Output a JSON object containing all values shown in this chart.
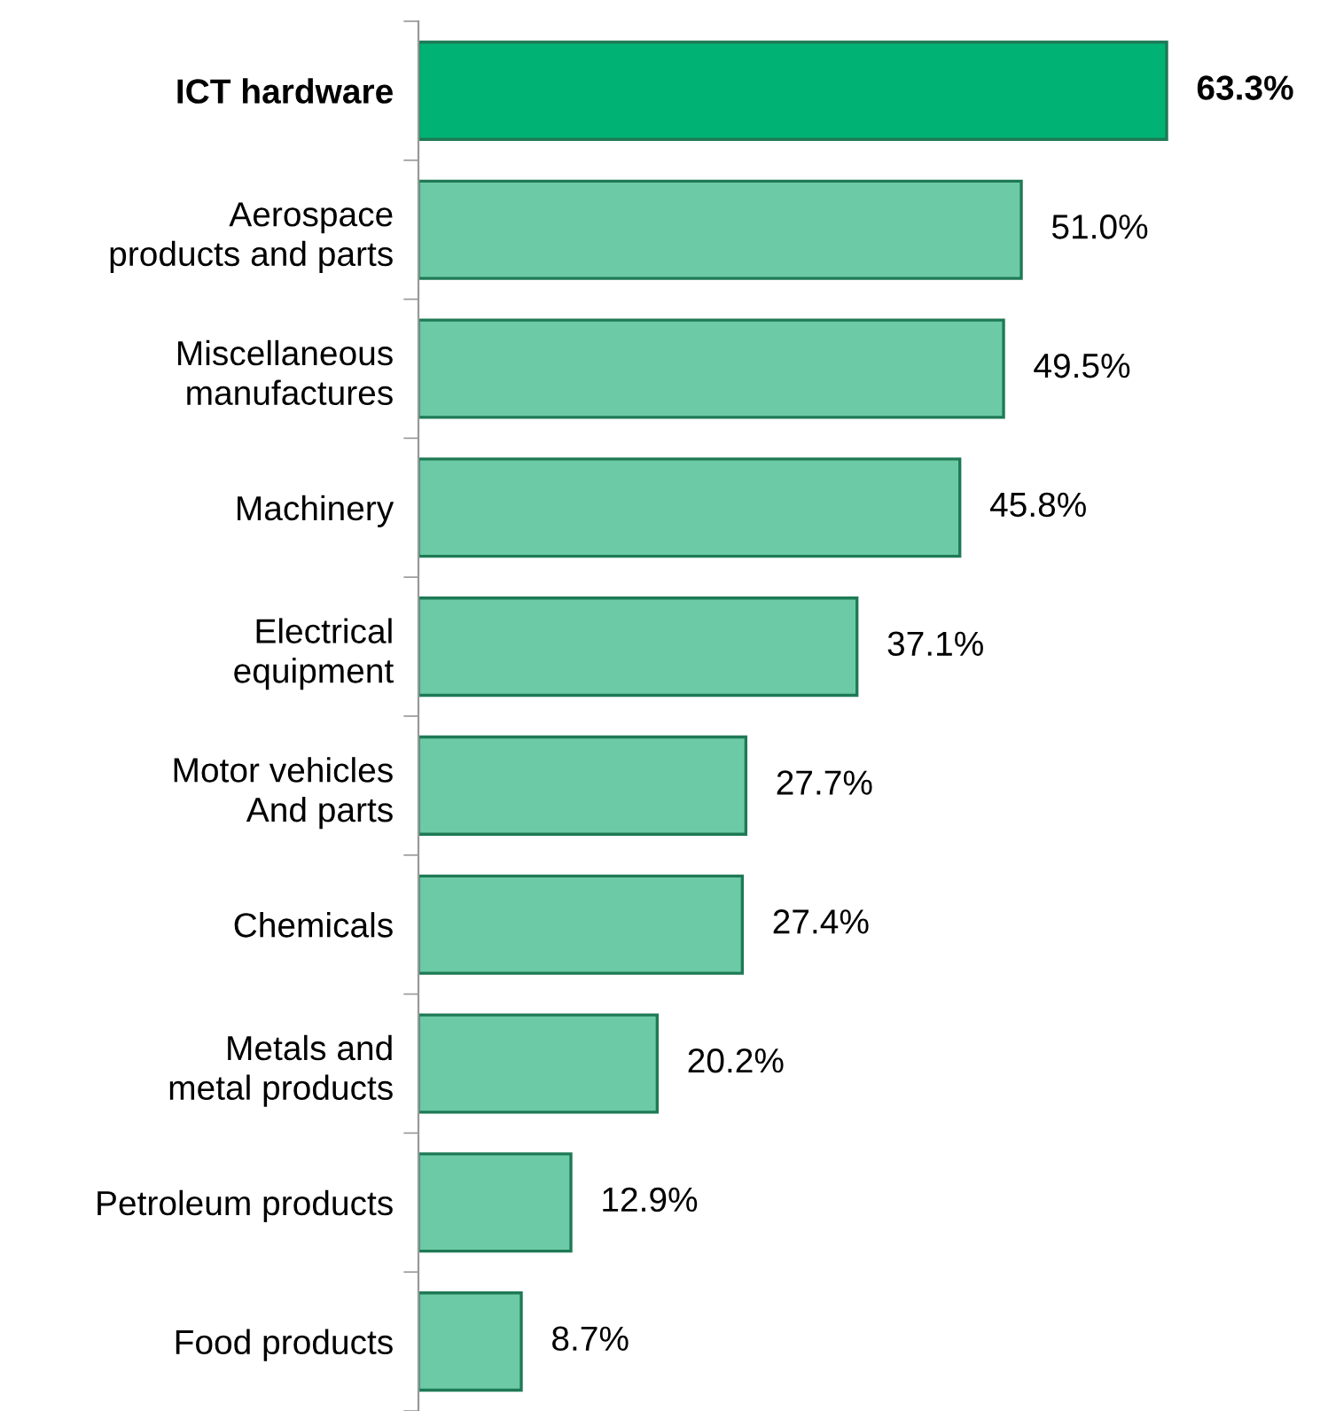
{
  "chart_data": {
    "type": "bar",
    "orientation": "horizontal",
    "categories": [
      "ICT hardware",
      "Aerospace\nproducts and parts",
      "Miscellaneous\nmanufactures",
      "Machinery",
      "Electrical\nequipment",
      "Motor vehicles\nAnd parts",
      "Chemicals",
      "Metals and\nmetal products",
      "Petroleum products",
      "Food products"
    ],
    "values": [
      63.3,
      51.0,
      49.5,
      45.8,
      37.1,
      27.7,
      27.4,
      20.2,
      12.9,
      8.7
    ],
    "value_labels": [
      "63.3%",
      "51.0%",
      "49.5%",
      "45.8%",
      "37.1%",
      "27.7%",
      "27.4%",
      "20.2%",
      "12.9%",
      "8.7%"
    ],
    "colors": [
      "#00b274",
      "#6ccaa6",
      "#6ccaa6",
      "#6ccaa6",
      "#6ccaa6",
      "#6ccaa6",
      "#6ccaa6",
      "#6ccaa6",
      "#6ccaa6",
      "#6ccaa6"
    ],
    "grid": false,
    "legend": false
  }
}
